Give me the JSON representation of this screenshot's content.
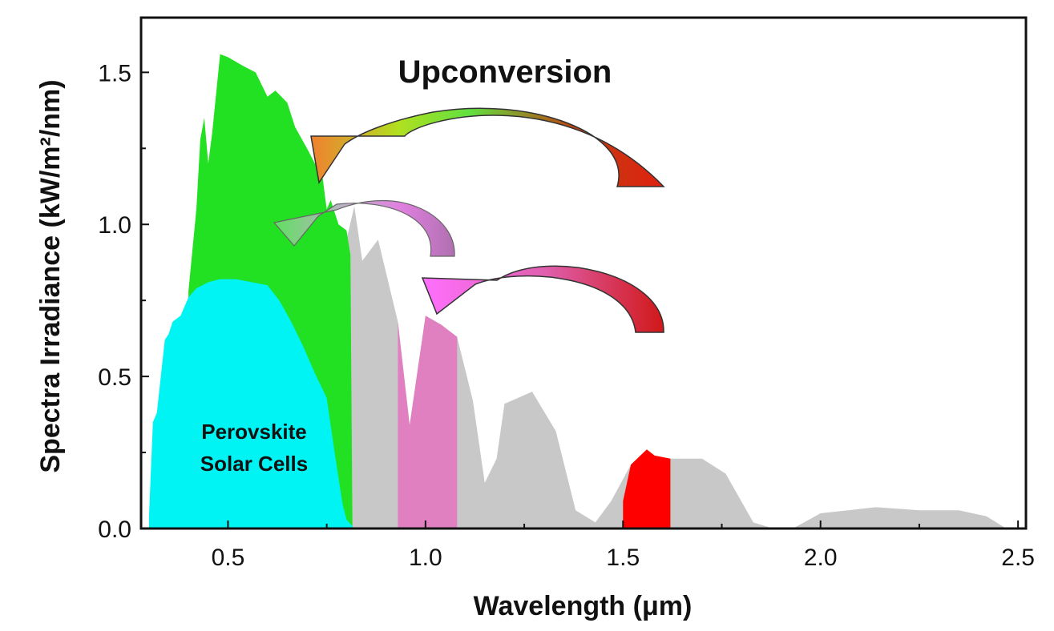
{
  "chart_data": {
    "type": "area",
    "title": "",
    "xlabel": "Wavelength (μm)",
    "ylabel": "Spectra Irradiance (kW/m²/nm)",
    "xlim": [
      0.28,
      2.52
    ],
    "ylim": [
      0.0,
      1.68
    ],
    "xticks": [
      {
        "value": 0.5,
        "label": "0.5"
      },
      {
        "value": 1.0,
        "label": "1.0"
      },
      {
        "value": 1.5,
        "label": "1.5"
      },
      {
        "value": 2.0,
        "label": "2.0"
      },
      {
        "value": 2.5,
        "label": "2.5"
      }
    ],
    "yticks": [
      {
        "value": 0.0,
        "label": "0.0"
      },
      {
        "value": 0.5,
        "label": "0.5"
      },
      {
        "value": 1.0,
        "label": "1.0"
      },
      {
        "value": 1.5,
        "label": "1.5"
      }
    ],
    "grid": false,
    "colors": {
      "spectrum": "#c8c8c8",
      "visible": "#22e022",
      "perovskite": "#00f4f4",
      "band_1": "#e080c0",
      "band_2": "#ff0000"
    },
    "series": [
      {
        "key": "spectrum",
        "x": [
          0.3,
          0.4,
          0.48,
          0.55,
          0.62,
          0.7,
          0.76,
          0.8,
          0.82,
          0.84,
          0.88,
          0.93,
          0.96,
          1.0,
          1.04,
          1.08,
          1.12,
          1.15,
          1.18,
          1.2,
          1.27,
          1.33,
          1.38,
          1.43,
          1.47,
          1.52,
          1.58,
          1.62,
          1.7,
          1.76,
          1.83,
          1.88,
          1.93,
          2.0,
          2.07,
          2.14,
          2.25,
          2.35,
          2.42,
          2.47
        ],
        "y": [
          0.0,
          0.0,
          0.0,
          0.0,
          0.0,
          0.0,
          0.0,
          0.95,
          1.06,
          0.88,
          0.95,
          0.68,
          0.34,
          0.7,
          0.67,
          0.63,
          0.42,
          0.15,
          0.23,
          0.41,
          0.45,
          0.32,
          0.06,
          0.02,
          0.09,
          0.21,
          0.23,
          0.23,
          0.23,
          0.18,
          0.02,
          0.0,
          0.0,
          0.05,
          0.06,
          0.07,
          0.06,
          0.06,
          0.04,
          0.0
        ]
      },
      {
        "key": "visible",
        "x": [
          0.4,
          0.42,
          0.43,
          0.44,
          0.45,
          0.46,
          0.48,
          0.5,
          0.54,
          0.57,
          0.6,
          0.62,
          0.65,
          0.67,
          0.7,
          0.72,
          0.74,
          0.75,
          0.76,
          0.78,
          0.8,
          0.81,
          0.815
        ],
        "y": [
          0.78,
          1.05,
          1.28,
          1.35,
          1.2,
          1.3,
          1.56,
          1.55,
          1.52,
          1.5,
          1.42,
          1.44,
          1.4,
          1.32,
          1.25,
          1.2,
          1.15,
          1.05,
          1.08,
          1.0,
          0.98,
          0.9,
          0.0
        ]
      },
      {
        "key": "perovskite",
        "x": [
          0.3,
          0.31,
          0.32,
          0.34,
          0.35,
          0.36,
          0.38,
          0.4,
          0.42,
          0.45,
          0.48,
          0.52,
          0.56,
          0.6,
          0.63,
          0.66,
          0.69,
          0.72,
          0.75,
          0.77,
          0.79,
          0.8,
          0.82
        ],
        "y": [
          0.04,
          0.35,
          0.38,
          0.62,
          0.64,
          0.68,
          0.7,
          0.76,
          0.79,
          0.81,
          0.82,
          0.82,
          0.81,
          0.8,
          0.75,
          0.68,
          0.6,
          0.51,
          0.43,
          0.25,
          0.08,
          0.03,
          0.0
        ]
      },
      {
        "key": "band_1",
        "x": [
          0.93,
          0.96,
          1.0,
          1.04,
          1.08
        ],
        "y": [
          0.68,
          0.34,
          0.7,
          0.67,
          0.63
        ]
      },
      {
        "key": "band_2",
        "x": [
          1.5,
          1.52,
          1.56,
          1.58,
          1.62
        ],
        "y": [
          0.09,
          0.21,
          0.26,
          0.24,
          0.23
        ]
      }
    ],
    "annotations": {
      "upconversion": "Upconversion",
      "perovskite_line1": "Perovskite",
      "perovskite_line2": "Solar Cells"
    }
  }
}
